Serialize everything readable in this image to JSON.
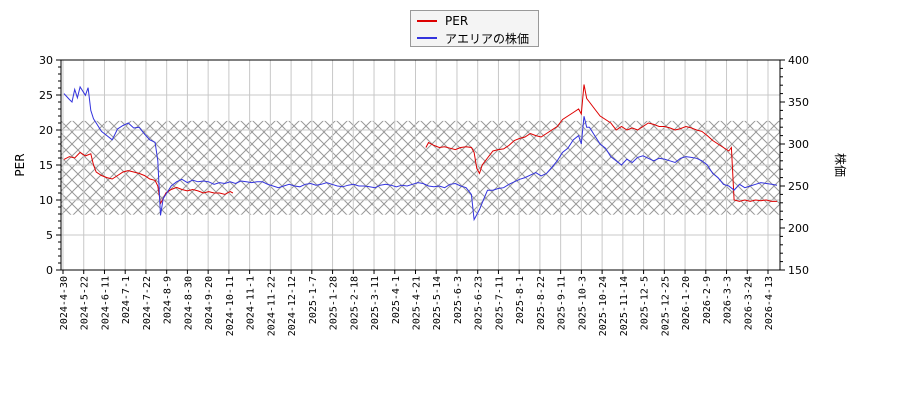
{
  "chart_data": {
    "type": "line",
    "title": "",
    "xlabel": "",
    "ylabel": "PER",
    "y2label": "株価",
    "ylim": [
      0,
      30
    ],
    "y2lim": [
      150,
      400
    ],
    "yticks": [
      0,
      5,
      10,
      15,
      20,
      25,
      30
    ],
    "y2ticks": [
      150,
      200,
      250,
      300,
      350,
      400
    ],
    "grid": true,
    "legend_position": "top-center",
    "band": {
      "per_low": 7.9,
      "per_high": 21.3,
      "style": "crosshatch"
    },
    "x_tick_labels": [
      "2024-4-30",
      "2024-5-22",
      "2024-6-11",
      "2024-7-1",
      "2024-7-22",
      "2024-8-9",
      "2024-8-30",
      "2024-9-20",
      "2024-10-11",
      "2024-11-1",
      "2024-11-22",
      "2024-12-12",
      "2025-1-7",
      "2025-1-28",
      "2025-2-18",
      "2025-3-11",
      "2025-4-1",
      "2025-4-21",
      "2025-5-14",
      "2025-6-3",
      "2025-6-23",
      "2025-7-11",
      "2025-8-1",
      "2025-8-22",
      "2025-9-11",
      "2025-10-3",
      "2025-10-24",
      "2025-11-14",
      "2025-12-5",
      "2025-12-25",
      "2026-1-20",
      "2026-2-9",
      "2026-3-3",
      "2026-3-24",
      "2026-4-13"
    ],
    "series": [
      {
        "name": "PER",
        "color": "#dd0000",
        "axis": "left",
        "values": [
          [
            0,
            15.8
          ],
          [
            2,
            16.2
          ],
          [
            4,
            16.0
          ],
          [
            6,
            16.8
          ],
          [
            8,
            16.3
          ],
          [
            10,
            16.6
          ],
          [
            11,
            15.0
          ],
          [
            12,
            14.0
          ],
          [
            14,
            13.5
          ],
          [
            16,
            13.2
          ],
          [
            18,
            13.0
          ],
          [
            20,
            13.5
          ],
          [
            22,
            14.0
          ],
          [
            24,
            14.2
          ],
          [
            26,
            14.0
          ],
          [
            28,
            13.8
          ],
          [
            30,
            13.5
          ],
          [
            32,
            13.0
          ],
          [
            34,
            12.8
          ],
          [
            35,
            12.0
          ],
          [
            36,
            9.5
          ],
          [
            37,
            10.2
          ],
          [
            38,
            11.0
          ],
          [
            40,
            11.5
          ],
          [
            42,
            11.8
          ],
          [
            44,
            11.5
          ],
          [
            46,
            11.3
          ],
          [
            48,
            11.5
          ],
          [
            50,
            11.3
          ],
          [
            52,
            11.0
          ],
          [
            54,
            11.2
          ],
          [
            56,
            11.0
          ],
          [
            58,
            11.0
          ],
          [
            60,
            10.8
          ],
          [
            62,
            11.2
          ],
          [
            63,
            11.0
          ],
          null,
          [
            135,
            17.5
          ],
          [
            136,
            18.2
          ],
          [
            138,
            17.8
          ],
          [
            140,
            17.5
          ],
          [
            142,
            17.6
          ],
          [
            144,
            17.4
          ],
          [
            146,
            17.2
          ],
          [
            148,
            17.5
          ],
          [
            150,
            17.6
          ],
          [
            152,
            17.5
          ],
          [
            153,
            16.8
          ],
          [
            154,
            14.5
          ],
          [
            155,
            13.8
          ],
          [
            156,
            15.0
          ],
          [
            158,
            16.0
          ],
          [
            160,
            17.0
          ],
          [
            162,
            17.2
          ],
          [
            164,
            17.3
          ],
          [
            166,
            17.8
          ],
          [
            168,
            18.5
          ],
          [
            170,
            18.8
          ],
          [
            172,
            19.0
          ],
          [
            174,
            19.5
          ],
          [
            176,
            19.2
          ],
          [
            178,
            19.0
          ],
          [
            180,
            19.5
          ],
          [
            182,
            20.0
          ],
          [
            184,
            20.5
          ],
          [
            186,
            21.5
          ],
          [
            188,
            22.0
          ],
          [
            190,
            22.5
          ],
          [
            192,
            23.0
          ],
          [
            193,
            22.3
          ],
          [
            194,
            26.5
          ],
          [
            195,
            24.5
          ],
          [
            196,
            24.0
          ],
          [
            198,
            23.0
          ],
          [
            200,
            22.0
          ],
          [
            202,
            21.5
          ],
          [
            204,
            21.0
          ],
          [
            206,
            20.0
          ],
          [
            208,
            20.5
          ],
          [
            210,
            20.0
          ],
          [
            212,
            20.3
          ],
          [
            214,
            20.0
          ],
          [
            216,
            20.5
          ],
          [
            218,
            21.0
          ],
          [
            220,
            20.8
          ],
          [
            222,
            20.5
          ],
          [
            224,
            20.5
          ],
          [
            226,
            20.3
          ],
          [
            228,
            20.0
          ],
          [
            230,
            20.2
          ],
          [
            232,
            20.5
          ],
          [
            234,
            20.3
          ],
          [
            236,
            20.0
          ],
          [
            238,
            19.8
          ],
          [
            240,
            19.2
          ],
          [
            242,
            18.5
          ],
          [
            244,
            18.0
          ],
          [
            246,
            17.5
          ],
          [
            248,
            17.0
          ],
          [
            249,
            17.5
          ],
          [
            250,
            10.0
          ],
          [
            252,
            9.8
          ],
          [
            254,
            10.0
          ],
          [
            256,
            9.8
          ],
          [
            258,
            10.0
          ],
          [
            260,
            9.9
          ],
          [
            262,
            10.0
          ],
          [
            264,
            9.8
          ],
          [
            266,
            9.8
          ]
        ]
      },
      {
        "name": "アエリアの株価",
        "color": "#3333dd",
        "axis": "right",
        "values": [
          [
            0,
            360
          ],
          [
            2,
            353
          ],
          [
            3,
            350
          ],
          [
            4,
            365
          ],
          [
            5,
            355
          ],
          [
            6,
            368
          ],
          [
            8,
            358
          ],
          [
            9,
            367
          ],
          [
            10,
            340
          ],
          [
            11,
            330
          ],
          [
            12,
            325
          ],
          [
            14,
            315
          ],
          [
            16,
            310
          ],
          [
            18,
            305
          ],
          [
            20,
            318
          ],
          [
            22,
            322
          ],
          [
            24,
            325
          ],
          [
            26,
            319
          ],
          [
            28,
            320
          ],
          [
            30,
            312
          ],
          [
            32,
            305
          ],
          [
            34,
            302
          ],
          [
            35,
            280
          ],
          [
            36,
            215
          ],
          [
            37,
            235
          ],
          [
            38,
            240
          ],
          [
            40,
            250
          ],
          [
            42,
            255
          ],
          [
            44,
            258
          ],
          [
            46,
            254
          ],
          [
            48,
            257
          ],
          [
            50,
            255
          ],
          [
            52,
            256
          ],
          [
            54,
            255
          ],
          [
            56,
            252
          ],
          [
            58,
            254
          ],
          [
            60,
            253
          ],
          [
            62,
            255
          ],
          [
            64,
            253
          ],
          [
            66,
            256
          ],
          [
            68,
            255
          ],
          [
            70,
            254
          ],
          [
            72,
            255
          ],
          [
            74,
            255
          ],
          [
            76,
            252
          ],
          [
            78,
            250
          ],
          [
            80,
            248
          ],
          [
            82,
            250
          ],
          [
            84,
            252
          ],
          [
            86,
            250
          ],
          [
            88,
            249
          ],
          [
            90,
            252
          ],
          [
            92,
            253
          ],
          [
            94,
            251
          ],
          [
            96,
            252
          ],
          [
            98,
            254
          ],
          [
            100,
            252
          ],
          [
            102,
            250
          ],
          [
            104,
            249
          ],
          [
            106,
            251
          ],
          [
            108,
            252
          ],
          [
            110,
            250
          ],
          [
            112,
            250
          ],
          [
            114,
            249
          ],
          [
            116,
            248
          ],
          [
            118,
            251
          ],
          [
            120,
            252
          ],
          [
            122,
            251
          ],
          [
            124,
            249
          ],
          [
            126,
            251
          ],
          [
            128,
            250
          ],
          [
            130,
            252
          ],
          [
            132,
            254
          ],
          [
            134,
            253
          ],
          [
            136,
            250
          ],
          [
            138,
            249
          ],
          [
            140,
            250
          ],
          [
            142,
            248
          ],
          [
            144,
            252
          ],
          [
            146,
            253
          ],
          [
            148,
            250
          ],
          [
            150,
            248
          ],
          [
            152,
            240
          ],
          [
            153,
            210
          ],
          [
            154,
            216
          ],
          [
            155,
            222
          ],
          [
            156,
            230
          ],
          [
            158,
            245
          ],
          [
            160,
            245
          ],
          [
            162,
            247
          ],
          [
            164,
            248
          ],
          [
            166,
            252
          ],
          [
            168,
            255
          ],
          [
            170,
            258
          ],
          [
            172,
            260
          ],
          [
            174,
            263
          ],
          [
            176,
            266
          ],
          [
            178,
            262
          ],
          [
            180,
            265
          ],
          [
            182,
            272
          ],
          [
            184,
            280
          ],
          [
            186,
            290
          ],
          [
            188,
            295
          ],
          [
            190,
            305
          ],
          [
            192,
            310
          ],
          [
            193,
            300
          ],
          [
            194,
            333
          ],
          [
            195,
            320
          ],
          [
            196,
            320
          ],
          [
            198,
            310
          ],
          [
            200,
            300
          ],
          [
            202,
            295
          ],
          [
            204,
            285
          ],
          [
            206,
            280
          ],
          [
            208,
            275
          ],
          [
            210,
            282
          ],
          [
            212,
            278
          ],
          [
            214,
            284
          ],
          [
            216,
            286
          ],
          [
            218,
            283
          ],
          [
            220,
            280
          ],
          [
            222,
            283
          ],
          [
            224,
            282
          ],
          [
            226,
            280
          ],
          [
            228,
            278
          ],
          [
            230,
            283
          ],
          [
            232,
            285
          ],
          [
            234,
            284
          ],
          [
            236,
            283
          ],
          [
            238,
            280
          ],
          [
            240,
            275
          ],
          [
            242,
            265
          ],
          [
            244,
            260
          ],
          [
            246,
            252
          ],
          [
            248,
            250
          ],
          [
            250,
            245
          ],
          [
            252,
            252
          ],
          [
            254,
            248
          ],
          [
            256,
            250
          ],
          [
            258,
            252
          ],
          [
            260,
            254
          ],
          [
            262,
            253
          ],
          [
            264,
            252
          ],
          [
            266,
            251
          ]
        ]
      }
    ]
  },
  "legend": {
    "items": [
      {
        "label": "PER",
        "color": "#dd0000"
      },
      {
        "label": "アエリアの株価",
        "color": "#3333dd"
      }
    ]
  }
}
